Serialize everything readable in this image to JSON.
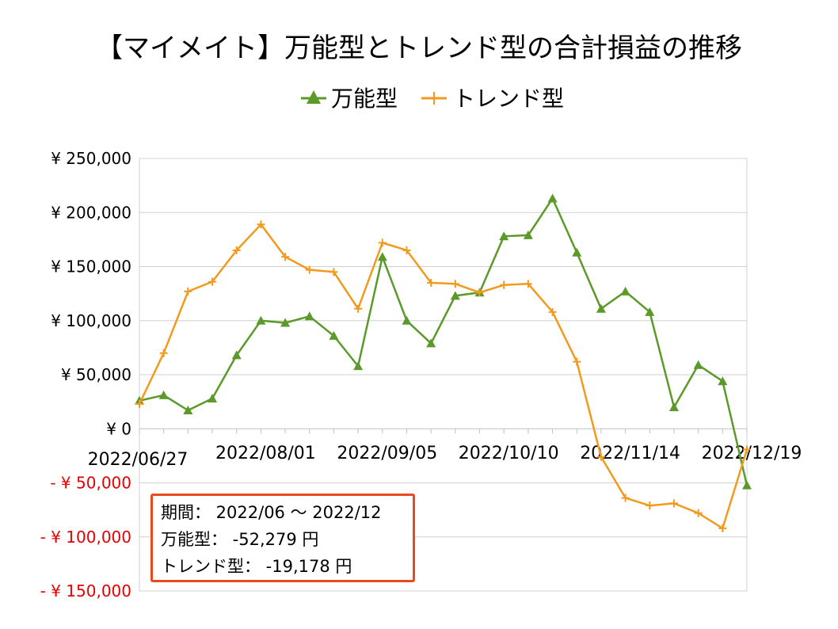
{
  "chart_data": {
    "type": "line",
    "title": "【マイメイト】万能型とトレンド型の合計損益の推移",
    "ylim": [
      -150000,
      250000
    ],
    "y_ticks": [
      250000,
      200000,
      150000,
      100000,
      50000,
      0,
      -50000,
      -100000,
      -150000
    ],
    "y_tick_labels": [
      "¥ 250,000",
      "¥ 200,000",
      "¥ 150,000",
      "¥ 100,000",
      "¥ 50,000",
      "¥ 0",
      "- ¥ 50,000",
      "- ¥ 100,000",
      "- ¥ 150,000"
    ],
    "x_tick_labels": [
      "2022/06/27",
      "2022/08/01",
      "2022/09/05",
      "2022/10/10",
      "2022/11/14",
      "2022/12/19"
    ],
    "x_tick_label_indices": [
      0,
      5,
      10,
      15,
      20,
      25
    ],
    "grid": true,
    "legend_position": "top",
    "series": [
      {
        "name": "万能型",
        "color": "#5b9a2a",
        "marker": "triangle",
        "values": [
          26000,
          31000,
          17000,
          28000,
          68000,
          100000,
          98000,
          104000,
          86000,
          58000,
          159000,
          100000,
          79000,
          123000,
          126000,
          178000,
          179000,
          213000,
          163000,
          111000,
          127000,
          108000,
          20000,
          59000,
          44000,
          -52279
        ]
      },
      {
        "name": "トレンド型",
        "color": "#f29a1e",
        "marker": "plus",
        "values": [
          23000,
          70000,
          127000,
          136000,
          165000,
          189000,
          159000,
          147000,
          145000,
          111000,
          172000,
          165000,
          135000,
          134000,
          126000,
          133000,
          134000,
          108000,
          62000,
          -26000,
          -64000,
          -71000,
          -69000,
          -78000,
          -92000,
          -19178
        ]
      }
    ]
  },
  "summary": {
    "period": "期間： 2022/06 ～ 2022/12",
    "universal": "万能型： -52,279 円",
    "trend": "トレンド型： -19,178 円"
  }
}
